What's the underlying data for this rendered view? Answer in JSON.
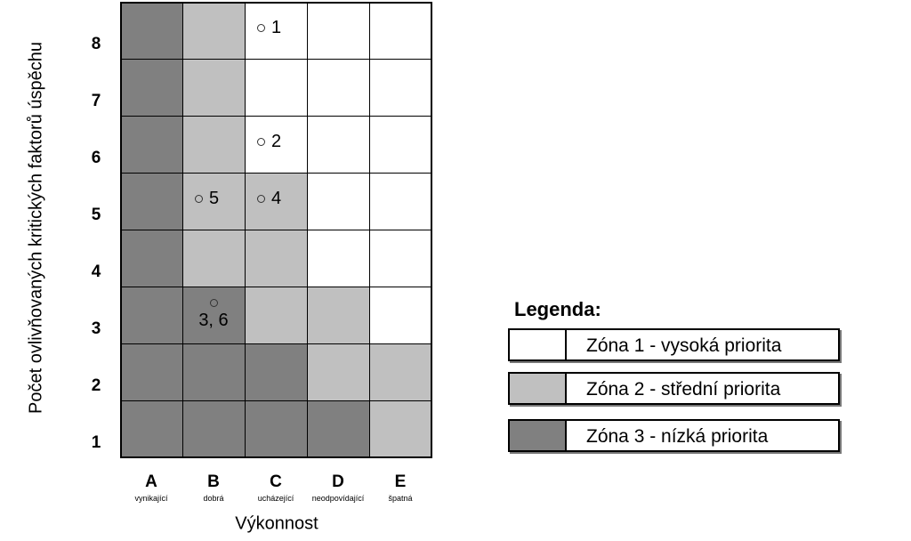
{
  "y_axis_label": "Počet ovlivňovaných kritických faktorů úspěchu",
  "x_axis_label": "Výkonnost",
  "rows": [
    "1",
    "2",
    "3",
    "4",
    "5",
    "6",
    "7",
    "8"
  ],
  "columns": [
    {
      "letter": "A",
      "caption": "vynikající"
    },
    {
      "letter": "B",
      "caption": "dobrá"
    },
    {
      "letter": "C",
      "caption": "ucházející"
    },
    {
      "letter": "D",
      "caption": "neodpovídající"
    },
    {
      "letter": "E",
      "caption": "špatná"
    }
  ],
  "colors": {
    "zone1": "#ffffff",
    "zone2": "#c0c0c0",
    "zone3": "#808080"
  },
  "zone_matrix_top_to_bottom": [
    [
      3,
      2,
      1,
      1,
      1
    ],
    [
      3,
      2,
      1,
      1,
      1
    ],
    [
      3,
      2,
      1,
      1,
      1
    ],
    [
      3,
      2,
      2,
      1,
      1
    ],
    [
      3,
      2,
      2,
      1,
      1
    ],
    [
      3,
      3,
      2,
      2,
      1
    ],
    [
      3,
      3,
      3,
      2,
      2
    ],
    [
      3,
      3,
      3,
      3,
      2
    ]
  ],
  "points": [
    {
      "label": "1",
      "col": "C",
      "row": "8"
    },
    {
      "label": "2",
      "col": "C",
      "row": "6"
    },
    {
      "label": "5",
      "col": "B",
      "row": "5"
    },
    {
      "label": "4",
      "col": "C",
      "row": "5"
    },
    {
      "label": "3, 6",
      "col": "B",
      "row": "3"
    }
  ],
  "legend": {
    "title": "Legenda:",
    "items": [
      {
        "zone": 1,
        "text": "Zóna 1 - vysoká priorita"
      },
      {
        "zone": 2,
        "text": "Zóna 2 - střední priorita"
      },
      {
        "zone": 3,
        "text": "Zóna 3 -  nízká priorita"
      }
    ]
  }
}
